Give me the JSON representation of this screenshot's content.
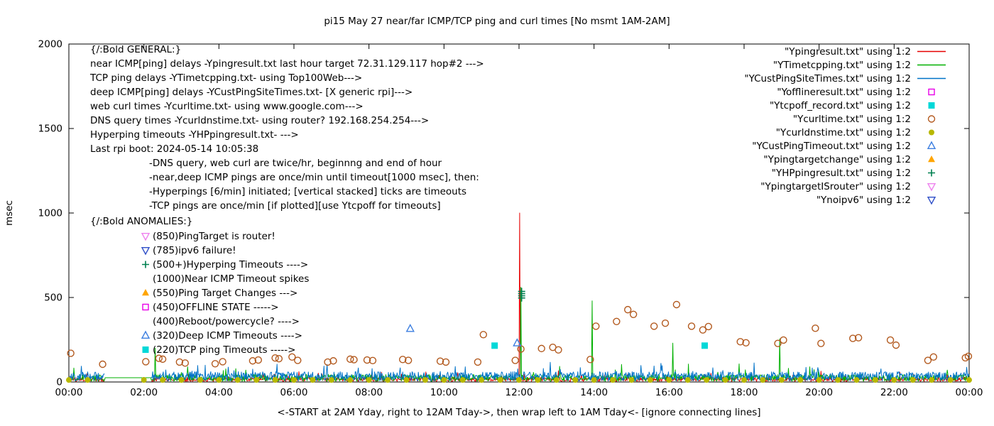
{
  "title": "pi15 May 27  near/far ICMP/TCP ping and curl times [No msmt 1AM-2AM]",
  "ylabel": "msec",
  "xlabel": "<-START at 2AM Yday, right to 12AM Tday->, then wrap left to 1AM Tday<- [ignore connecting lines]",
  "chart_data": {
    "type": "line",
    "x_unit": "hours",
    "xlim": [
      0,
      24
    ],
    "ylim": [
      0,
      2000
    ],
    "x_ticks": [
      "00:00",
      "02:00",
      "04:00",
      "06:00",
      "08:00",
      "10:00",
      "12:00",
      "14:00",
      "16:00",
      "18:00",
      "20:00",
      "22:00",
      "00:00"
    ],
    "y_ticks": [
      0,
      500,
      1000,
      1500,
      2000
    ],
    "grid": false,
    "legend_position": "top-right-outside-plot",
    "no_measurement_gap_hours": [
      0.95,
      2.2
    ],
    "noise_seed": 20240527,
    "series": {
      "near_icmp": {
        "label": "\"Ypingresult.txt\" using 1:2",
        "color": "#e60000",
        "style": "line",
        "noise": {
          "base": 3,
          "amp": 25,
          "spike_prob": 0.05,
          "spike_amp": 40
        },
        "spikes": [
          [
            12.02,
            1000
          ]
        ]
      },
      "tcp_ping": {
        "label": "\"YTimetcpping.txt\" using 1:2",
        "color": "#00b000",
        "style": "line",
        "noise": {
          "base": 4,
          "amp": 40,
          "spike_prob": 0.03,
          "spike_amp": 70
        },
        "gap_value": 25,
        "spikes": [
          [
            2.3,
            200
          ],
          [
            12.05,
            560
          ],
          [
            13.95,
            480
          ],
          [
            16.1,
            230
          ],
          [
            18.95,
            255
          ]
        ]
      },
      "deep_icmp": {
        "label": "\"YCustPingSiteTimes.txt\" using 1:2",
        "color": "#0072c8",
        "style": "line",
        "noise": {
          "base": 6,
          "amp": 55,
          "spike_prob": 0.05,
          "spike_amp": 70
        },
        "spikes": []
      },
      "offline": {
        "label": "\"Yofflineresult.txt\" using 1:2",
        "color": "#e800e8",
        "style": "square-open",
        "points": []
      },
      "tcp_timeout": {
        "label": "\"Ytcpoff_record.txt\" using 1:2",
        "color": "#00d8d8",
        "style": "square-filled",
        "points": [
          [
            11.35,
            215
          ],
          [
            16.95,
            215
          ]
        ]
      },
      "curl": {
        "label": "\"Ycurltime.txt\" using 1:2",
        "color": "#b35a1f",
        "style": "circle-open",
        "points": [
          [
            0.05,
            170
          ],
          [
            0.9,
            105
          ],
          [
            2.05,
            120
          ],
          [
            2.4,
            140
          ],
          [
            2.5,
            135
          ],
          [
            2.95,
            118
          ],
          [
            3.1,
            112
          ],
          [
            3.9,
            108
          ],
          [
            4.1,
            120
          ],
          [
            4.9,
            125
          ],
          [
            5.05,
            130
          ],
          [
            5.5,
            142
          ],
          [
            5.6,
            138
          ],
          [
            5.95,
            148
          ],
          [
            6.1,
            128
          ],
          [
            6.9,
            118
          ],
          [
            7.05,
            125
          ],
          [
            7.5,
            135
          ],
          [
            7.6,
            132
          ],
          [
            7.95,
            130
          ],
          [
            8.1,
            127
          ],
          [
            8.9,
            133
          ],
          [
            9.05,
            128
          ],
          [
            9.9,
            123
          ],
          [
            10.05,
            118
          ],
          [
            10.9,
            118
          ],
          [
            11.05,
            280
          ],
          [
            11.9,
            128
          ],
          [
            12.05,
            195
          ],
          [
            12.6,
            198
          ],
          [
            12.9,
            205
          ],
          [
            13.05,
            190
          ],
          [
            13.9,
            133
          ],
          [
            14.05,
            330
          ],
          [
            14.6,
            358
          ],
          [
            14.9,
            428
          ],
          [
            15.05,
            400
          ],
          [
            15.6,
            330
          ],
          [
            15.9,
            348
          ],
          [
            16.2,
            458
          ],
          [
            16.6,
            330
          ],
          [
            16.9,
            308
          ],
          [
            17.05,
            328
          ],
          [
            17.9,
            238
          ],
          [
            18.05,
            232
          ],
          [
            18.9,
            228
          ],
          [
            19.05,
            248
          ],
          [
            19.9,
            318
          ],
          [
            20.05,
            228
          ],
          [
            20.9,
            258
          ],
          [
            21.05,
            262
          ],
          [
            21.9,
            248
          ],
          [
            22.05,
            218
          ],
          [
            22.9,
            128
          ],
          [
            23.05,
            148
          ],
          [
            23.9,
            143
          ],
          [
            23.98,
            152
          ]
        ]
      },
      "dns": {
        "label": "\"Ycurldnstime.txt\" using 1:2",
        "color": "#b8b800",
        "style": "circle-filled",
        "period_hours": 0.5,
        "value": 12
      },
      "deep_timeout": {
        "label": "\"YCustPingTimeout.txt\" using 1:2",
        "color": "#3d7fe0",
        "style": "tri-up-open",
        "points": [
          [
            9.1,
            315
          ],
          [
            11.95,
            230
          ]
        ]
      },
      "target_change": {
        "label": "\"Ypingtargetchange\" using 1:2",
        "color": "#ffa500",
        "style": "tri-up-filled",
        "points": []
      },
      "hyperping": {
        "label": "\"YHPpingresult.txt\" using 1:2",
        "color": "#008050",
        "style": "plus",
        "points": [
          [
            12.07,
            497
          ],
          [
            12.07,
            510
          ],
          [
            12.07,
            523
          ],
          [
            12.07,
            536
          ]
        ]
      },
      "target_is_router": {
        "label": "\"YpingtargetISrouter\" using 1:2",
        "color": "#ee82ee",
        "style": "tri-down-open",
        "points": []
      },
      "noipv6": {
        "label": "\"Ynoipv6\" using 1:2",
        "color": "#3050c8",
        "style": "tri-down-open",
        "points": []
      }
    },
    "legend_order": [
      "near_icmp",
      "tcp_ping",
      "deep_icmp",
      "offline",
      "tcp_timeout",
      "curl",
      "dns",
      "deep_timeout",
      "target_change",
      "hyperping",
      "target_is_router",
      "noipv6"
    ]
  },
  "annotations": {
    "general": [
      {
        "text": "{/:Bold GENERAL:}",
        "indent": 0
      },
      {
        "text": "near ICMP[ping] delays -Ypingresult.txt last hour target 72.31.129.117 hop#2 --->",
        "indent": 0
      },
      {
        "text": "TCP ping delays -YTimetcpping.txt- using Top100Web--->",
        "indent": 0
      },
      {
        "text": "deep ICMP[ping] delays -YCustPingSiteTimes.txt- [X generic rpi]--->",
        "indent": 0
      },
      {
        "text": "web curl times -Ycurltime.txt- using www.google.com--->",
        "indent": 0
      },
      {
        "text": "DNS query times -Ycurldnstime.txt- using router? 192.168.254.254--->",
        "indent": 0
      },
      {
        "text": "Hyperping timeouts -YHPpingresult.txt- --->",
        "indent": 0
      },
      {
        "text": "Last rpi boot: 2024-05-14 10:05:38",
        "indent": 0
      },
      {
        "text": "-DNS query, web curl are twice/hr, beginnng and end of hour",
        "indent": 1
      },
      {
        "text": "-near,deep ICMP pings are once/min until timeout[1000 msec], then:",
        "indent": 1
      },
      {
        "text": "-Hyperpings [6/min] initiated; [vertical stacked] ticks are timeouts",
        "indent": 1
      },
      {
        "text": "-TCP pings are once/min [if plotted][use Ytcpoff for timeouts]",
        "indent": 1
      }
    ],
    "anomalies_header": "{/:Bold ANOMALIES:}",
    "anomalies": [
      {
        "marker": "tri-down-open",
        "color": "#ee82ee",
        "text": "(850)PingTarget is router!"
      },
      {
        "marker": "tri-down-open",
        "color": "#3050c8",
        "text": "(785)ipv6 failure!"
      },
      {
        "marker": "plus",
        "color": "#008050",
        "text": "(500+)Hyperping Timeouts ---->"
      },
      {
        "marker": null,
        "color": null,
        "text": "(1000)Near ICMP Timeout spikes"
      },
      {
        "marker": "tri-up-filled",
        "color": "#ffa500",
        "text": "(550)Ping Target Changes --->"
      },
      {
        "marker": "square-open",
        "color": "#e800e8",
        "text": "(450)OFFLINE STATE ----->"
      },
      {
        "marker": null,
        "color": null,
        "text": "(400)Reboot/powercycle? ---->"
      },
      {
        "marker": "tri-up-open",
        "color": "#3d7fe0",
        "text": "(320)Deep ICMP Timeouts ---->"
      },
      {
        "marker": "square-filled",
        "color": "#00d8d8",
        "text": "(220)TCP ping Timeouts ----->"
      }
    ]
  }
}
